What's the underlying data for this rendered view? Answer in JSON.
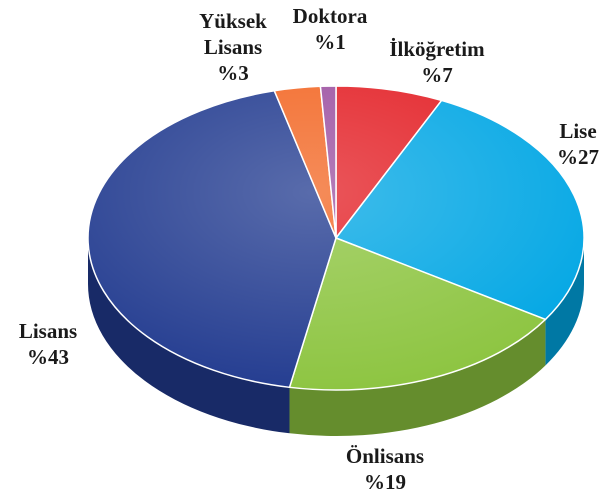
{
  "chart_data": {
    "type": "pie",
    "categories": [
      "İlköğretim",
      "Lise",
      "Önlisans",
      "Lisans",
      "Yüksek Lisans",
      "Doktora"
    ],
    "values": [
      7,
      27,
      19,
      43,
      3,
      1
    ],
    "value_labels": [
      "%7",
      "%27",
      "%19",
      "%43",
      "%3",
      "%1"
    ],
    "colors": [
      "#e31e24",
      "#00a6e4",
      "#8cc43f",
      "#213a8f",
      "#f26522",
      "#9b4fa0"
    ]
  }
}
